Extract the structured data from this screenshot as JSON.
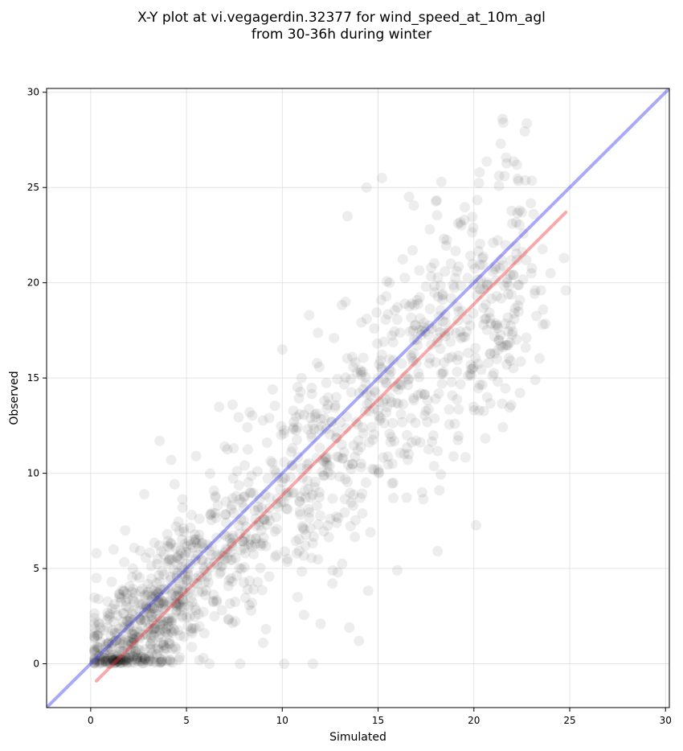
{
  "chart_data": {
    "type": "scatter",
    "title_line1": "X-Y plot at vi.vegagerdin.32377 for wind_speed_at_10m_agl",
    "title_line2": "from 30-36h during winter",
    "xlabel": "Simulated",
    "ylabel": "Observed",
    "xlim": [
      -2.3,
      30.2
    ],
    "ylim": [
      -2.3,
      30.2
    ],
    "xticks": [
      "0",
      "5",
      "10",
      "15",
      "20",
      "25",
      "30"
    ],
    "yticks": [
      "0",
      "5",
      "10",
      "15",
      "20",
      "25",
      "30"
    ],
    "grid": true,
    "point_color": "#000000",
    "point_opacity": 0.07,
    "num_points": 1400,
    "reference_line": {
      "name": "1:1",
      "from": [
        -2.3,
        -2.3
      ],
      "to": [
        30.2,
        30.2
      ],
      "color": "#3333ee"
    },
    "fit_line": {
      "name": "fit",
      "from": [
        0.3,
        -0.9
      ],
      "to": [
        24.8,
        23.7
      ],
      "color": "#ee3333"
    },
    "scatter_sample": [
      [
        0.2,
        2.4
      ],
      [
        0.3,
        5.8
      ],
      [
        0.3,
        4.5
      ],
      [
        0.4,
        3.4
      ],
      [
        0.5,
        1.9
      ],
      [
        0.8,
        0.9
      ],
      [
        1.0,
        2.6
      ],
      [
        1.1,
        4.3
      ],
      [
        1.2,
        6.0
      ],
      [
        1.5,
        3.5
      ],
      [
        1.7,
        2.2
      ],
      [
        1.8,
        7.0
      ],
      [
        2.0,
        0.3
      ],
      [
        2.2,
        5.0
      ],
      [
        2.4,
        1.4
      ],
      [
        2.6,
        3.8
      ],
      [
        2.8,
        8.9
      ],
      [
        3.0,
        0.1
      ],
      [
        3.2,
        2.9
      ],
      [
        3.5,
        5.5
      ],
      [
        3.6,
        11.7
      ],
      [
        3.8,
        1.0
      ],
      [
        4.0,
        6.8
      ],
      [
        4.2,
        10.7
      ],
      [
        4.4,
        3.2
      ],
      [
        4.6,
        0.2
      ],
      [
        4.8,
        8.2
      ],
      [
        5.0,
        4.4
      ],
      [
        5.3,
        1.6
      ],
      [
        5.5,
        10.9
      ],
      [
        5.8,
        6.3
      ],
      [
        6.0,
        3.6
      ],
      [
        6.2,
        0.0
      ],
      [
        6.5,
        7.9
      ],
      [
        6.8,
        5.1
      ],
      [
        7.0,
        11.4
      ],
      [
        7.2,
        2.3
      ],
      [
        7.4,
        13.6
      ],
      [
        7.6,
        8.8
      ],
      [
        7.8,
        0.0
      ],
      [
        8.0,
        6.4
      ],
      [
        8.3,
        13.2
      ],
      [
        8.5,
        3.9
      ],
      [
        8.7,
        10.1
      ],
      [
        9.0,
        1.1
      ],
      [
        9.2,
        7.3
      ],
      [
        9.5,
        14.4
      ],
      [
        9.7,
        5.7
      ],
      [
        10.0,
        16.5
      ],
      [
        10.1,
        0.0
      ],
      [
        10.3,
        9.0
      ],
      [
        10.6,
        12.7
      ],
      [
        10.8,
        3.5
      ],
      [
        11.0,
        15.0
      ],
      [
        11.2,
        6.2
      ],
      [
        11.4,
        18.3
      ],
      [
        11.6,
        0.0
      ],
      [
        11.8,
        10.8
      ],
      [
        12.0,
        2.1
      ],
      [
        12.2,
        13.8
      ],
      [
        12.5,
        7.6
      ],
      [
        12.7,
        17.1
      ],
      [
        12.9,
        4.8
      ],
      [
        13.1,
        11.5
      ],
      [
        13.3,
        19.0
      ],
      [
        13.4,
        23.5
      ],
      [
        13.5,
        1.9
      ],
      [
        13.7,
        8.3
      ],
      [
        13.9,
        15.3
      ],
      [
        14.0,
        1.2
      ],
      [
        14.2,
        12.4
      ],
      [
        14.4,
        25.0
      ],
      [
        14.6,
        6.9
      ],
      [
        14.8,
        17.6
      ],
      [
        15.0,
        10.2
      ],
      [
        15.2,
        25.5
      ],
      [
        15.4,
        14.7
      ],
      [
        15.6,
        20.0
      ],
      [
        15.8,
        8.7
      ],
      [
        16.0,
        4.9
      ],
      [
        16.2,
        13.1
      ],
      [
        16.4,
        18.9
      ],
      [
        16.6,
        11.0
      ],
      [
        16.8,
        21.7
      ],
      [
        17.0,
        15.8
      ],
      [
        17.3,
        9.0
      ],
      [
        17.5,
        19.8
      ],
      [
        17.7,
        22.8
      ],
      [
        18.0,
        13.9
      ],
      [
        18.2,
        9.1
      ],
      [
        18.3,
        25.3
      ],
      [
        18.5,
        17.2
      ],
      [
        18.8,
        21.0
      ],
      [
        19.0,
        12.6
      ],
      [
        19.2,
        18.5
      ],
      [
        19.5,
        23.3
      ],
      [
        19.8,
        15.2
      ],
      [
        20.0,
        19.9
      ],
      [
        20.3,
        25.8
      ],
      [
        20.5,
        17.8
      ],
      [
        20.7,
        14.0
      ],
      [
        21.0,
        22.1
      ],
      [
        21.2,
        16.0
      ],
      [
        21.4,
        27.3
      ],
      [
        21.5,
        28.6
      ],
      [
        21.6,
        25.6
      ],
      [
        21.8,
        19.4
      ],
      [
        22.0,
        23.1
      ],
      [
        22.3,
        18.8
      ],
      [
        22.5,
        23.7
      ],
      [
        22.7,
        16.6
      ],
      [
        23.0,
        20.5
      ],
      [
        23.2,
        19.6
      ],
      [
        23.5,
        19.6
      ],
      [
        23.6,
        17.8
      ],
      [
        24.0,
        20.5
      ],
      [
        24.7,
        21.3
      ],
      [
        24.8,
        19.6
      ]
    ]
  }
}
